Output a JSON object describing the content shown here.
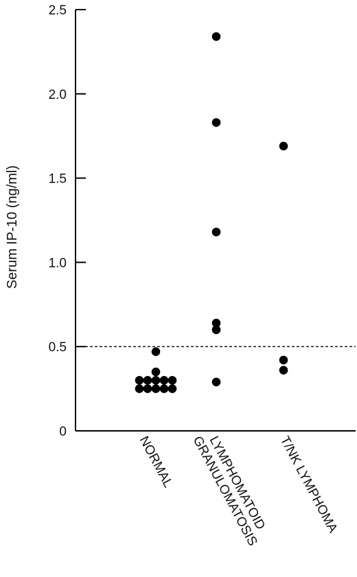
{
  "chart_data": {
    "type": "scatter",
    "title": "",
    "xlabel": "",
    "ylabel": "Serum IP-10 (ng/ml)",
    "ylim": [
      0,
      2.5
    ],
    "yticks": [
      0,
      0.5,
      1.0,
      1.5,
      2.0,
      2.5
    ],
    "ytick_labels": [
      "0",
      "0.5",
      "1.0",
      "1.5",
      "2.0",
      "2.5"
    ],
    "categories": [
      [
        "NORMAL"
      ],
      [
        "LYMPHOMATOID",
        "GRANULOMATOSIS"
      ],
      [
        "T/NK LYMPHOMA"
      ]
    ],
    "points": [
      {
        "category": 0,
        "offset": 0,
        "y": 0.47
      },
      {
        "category": 0,
        "offset": 0,
        "y": 0.35
      },
      {
        "category": 0,
        "offset": -2,
        "y": 0.3
      },
      {
        "category": 0,
        "offset": -1,
        "y": 0.3
      },
      {
        "category": 0,
        "offset": 0,
        "y": 0.3
      },
      {
        "category": 0,
        "offset": 1,
        "y": 0.3
      },
      {
        "category": 0,
        "offset": 2,
        "y": 0.3
      },
      {
        "category": 0,
        "offset": -2,
        "y": 0.25
      },
      {
        "category": 0,
        "offset": -1,
        "y": 0.25
      },
      {
        "category": 0,
        "offset": 0,
        "y": 0.25
      },
      {
        "category": 0,
        "offset": 1,
        "y": 0.25
      },
      {
        "category": 0,
        "offset": 2,
        "y": 0.25
      },
      {
        "category": 1,
        "offset": 0,
        "y": 2.34
      },
      {
        "category": 1,
        "offset": 0,
        "y": 1.83
      },
      {
        "category": 1,
        "offset": 0,
        "y": 1.18
      },
      {
        "category": 1,
        "offset": 0,
        "y": 0.64
      },
      {
        "category": 1,
        "offset": 0,
        "y": 0.6
      },
      {
        "category": 1,
        "offset": 0,
        "y": 0.29
      },
      {
        "category": 2,
        "offset": 0,
        "y": 1.69
      },
      {
        "category": 2,
        "offset": 0,
        "y": 0.42
      },
      {
        "category": 2,
        "offset": 0,
        "y": 0.36
      }
    ],
    "reference_line": {
      "y": 0.5,
      "style": "dashed"
    },
    "grid": false,
    "legend": "none",
    "colors": {
      "marker": "#000000",
      "axis": "#000000"
    }
  }
}
